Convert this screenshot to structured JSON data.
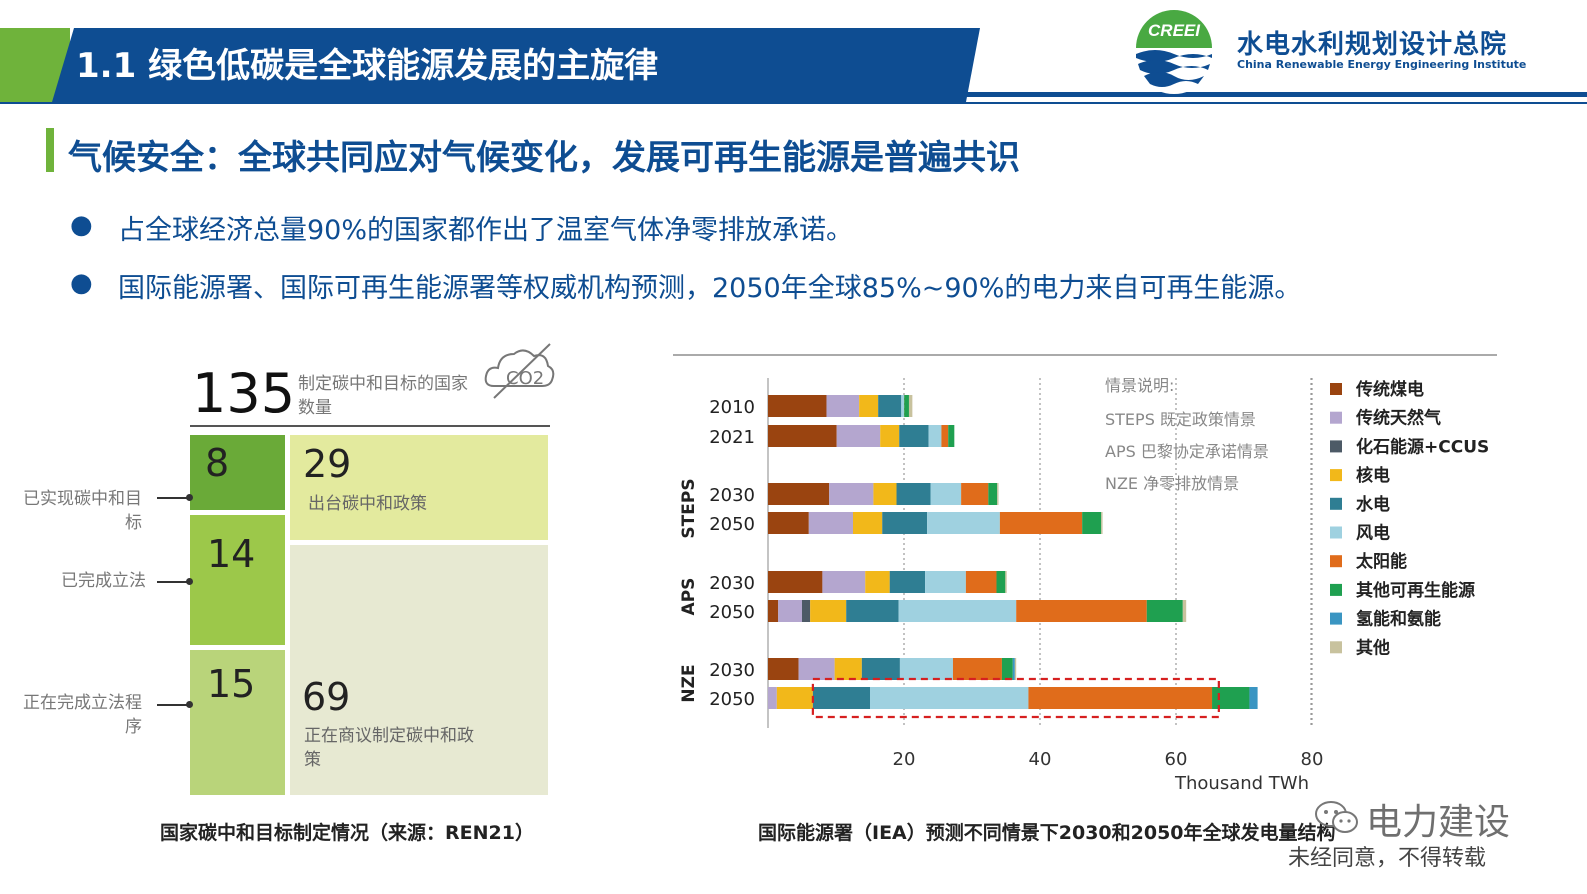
{
  "header": {
    "title": "1.1 绿色低碳是全球能源发展的主旋律",
    "org_logo_text": "CREEI",
    "org_name_cn": "水电水利规划设计总院",
    "org_name_en": "China Renewable Energy Engineering Institute"
  },
  "subtitle": "气候安全：全球共同应对气候变化，发展可再生能源是普遍共识",
  "bullets": [
    "占全球经济总量90%的国家都作出了温室气体净零排放承诺。",
    "国际能源署、国际可再生能源署等权威机构预测，2050年全球85%~90%的电力来自可再生能源。"
  ],
  "colors": {
    "brand_blue": "#0e4d92",
    "brand_green": "#6fb33b"
  },
  "left_panel": {
    "total": "135",
    "total_label": "制定碳中和目标的国家数量",
    "co2_icon_text": "CO2",
    "icon": "cloud-co2-icon",
    "boxes": {
      "achieved": {
        "value": "8",
        "side_label": "已实现碳中和目标"
      },
      "legislated": {
        "value": "14",
        "side_label": "已完成立法"
      },
      "in_legislation": {
        "value": "15",
        "side_label": "正在完成立法程序"
      },
      "policy": {
        "value": "29",
        "label": "出台碳中和政策"
      },
      "discussing": {
        "value": "69",
        "label": "正在商议制定碳中和政策"
      }
    },
    "caption": "国家碳中和目标制定情况（来源：REN21）"
  },
  "chart_data": {
    "type": "bar",
    "orientation": "horizontal",
    "stacked": true,
    "xlabel": "Thousand TWh",
    "xlim": [
      0,
      80
    ],
    "xticks": [
      "20",
      "40",
      "60",
      "80"
    ],
    "grid": "dotted vertical lines at 20, 40, 60, 80",
    "rows": [
      {
        "group": "",
        "label": "2010"
      },
      {
        "group": "",
        "label": "2021"
      },
      {
        "group": "STEPS",
        "label": "2030"
      },
      {
        "group": "STEPS",
        "label": "2050"
      },
      {
        "group": "APS",
        "label": "2030"
      },
      {
        "group": "APS",
        "label": "2050"
      },
      {
        "group": "NZE",
        "label": "2030"
      },
      {
        "group": "NZE",
        "label": "2050"
      }
    ],
    "series": [
      {
        "name": "传统煤电",
        "color": "#9a4410",
        "values": [
          8.6,
          10.1,
          9.0,
          6.0,
          8.0,
          1.5,
          4.5,
          0.0
        ]
      },
      {
        "name": "传统天然气",
        "color": "#b4a6cf",
        "values": [
          4.8,
          6.4,
          6.5,
          6.5,
          6.3,
          3.5,
          5.3,
          1.3
        ]
      },
      {
        "name": "化石能源+CCUS",
        "color": "#4d5a66",
        "values": [
          0.0,
          0.0,
          0.0,
          0.0,
          0.0,
          1.2,
          0.0,
          0.0
        ]
      },
      {
        "name": "核电",
        "color": "#f2b81a",
        "values": [
          2.8,
          2.8,
          3.4,
          4.3,
          3.6,
          5.3,
          4.0,
          5.3
        ]
      },
      {
        "name": "水电",
        "color": "#2f7e93",
        "values": [
          3.4,
          4.3,
          5.0,
          6.6,
          5.2,
          7.7,
          5.6,
          8.4
        ]
      },
      {
        "name": "风电",
        "color": "#9fd1e0",
        "values": [
          0.4,
          1.9,
          4.5,
          10.7,
          6.0,
          17.3,
          7.8,
          23.3
        ]
      },
      {
        "name": "太阳能",
        "color": "#e06c1b",
        "values": [
          0.03,
          1.0,
          4.0,
          12.1,
          4.5,
          19.2,
          7.2,
          27.0
        ]
      },
      {
        "name": "其他可再生能源",
        "color": "#1fa050",
        "values": [
          0.7,
          0.9,
          1.3,
          2.8,
          1.3,
          5.3,
          1.6,
          5.5
        ]
      },
      {
        "name": "氢能和氨能",
        "color": "#3a95c2",
        "values": [
          0.0,
          0.0,
          0.0,
          0.0,
          0.0,
          0.0,
          0.3,
          1.2
        ]
      },
      {
        "name": "其他",
        "color": "#c8c29e",
        "values": [
          0.5,
          0.0,
          0.2,
          0.2,
          0.2,
          0.5,
          0.2,
          0.0
        ]
      }
    ],
    "notes": {
      "title": "情景说明:",
      "lines": [
        "STEPS 既定政策情景",
        "APS 巴黎协定承诺情景",
        "NZE 净零排放情景"
      ]
    },
    "highlight": {
      "row": "NZE 2050",
      "x_from": 6.6,
      "x_to": 66.3,
      "style": "red dashed box"
    }
  },
  "chart_caption": "国际能源署（IEA）预测不同情景下2030和2050年全球发电量结构",
  "watermark": {
    "name": "电力建设",
    "note": "未经同意，不得转载",
    "icon": "wechat-icon"
  }
}
